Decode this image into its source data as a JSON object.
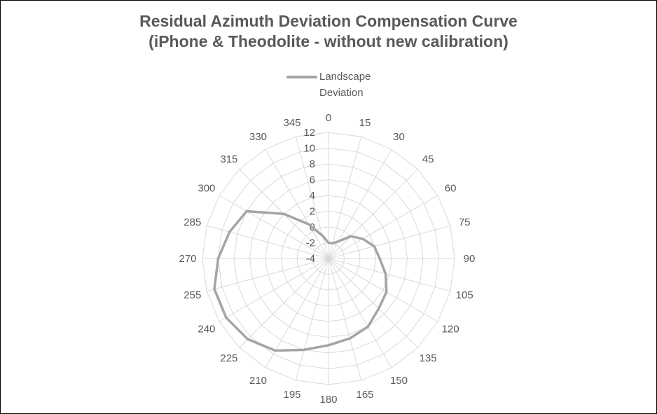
{
  "colors": {
    "series": "#a5a5a5",
    "grid": "#d9d9d9",
    "text": "#595959",
    "border": "#000000"
  },
  "chart_data": {
    "type": "radar",
    "title": "Residual Azimuth Deviation Compensation Curve",
    "subtitle": "(iPhone & Theodolite - without new calibration)",
    "legend_position": "top",
    "categories": [
      "0",
      "15",
      "30",
      "45",
      "60",
      "75",
      "90",
      "105",
      "120",
      "135",
      "150",
      "165",
      "180",
      "195",
      "210",
      "225",
      "240",
      "255",
      "270",
      "285",
      "300",
      "315",
      "330",
      "345"
    ],
    "radial_ticks": [
      "-4",
      "-2",
      "0",
      "2",
      "4",
      "6",
      "8",
      "10",
      "12"
    ],
    "r_range": [
      -4,
      12
    ],
    "grid": true,
    "series": [
      {
        "name": "Landscape Deviation",
        "values": [
          -2,
          -2,
          -1.5,
          0,
          1,
          2,
          2.5,
          3.5,
          4.5,
          5,
          6,
          6.5,
          7,
          8,
          9.5,
          10.5,
          11,
          11,
          10,
          9,
          8,
          4,
          1,
          -1
        ]
      }
    ]
  }
}
